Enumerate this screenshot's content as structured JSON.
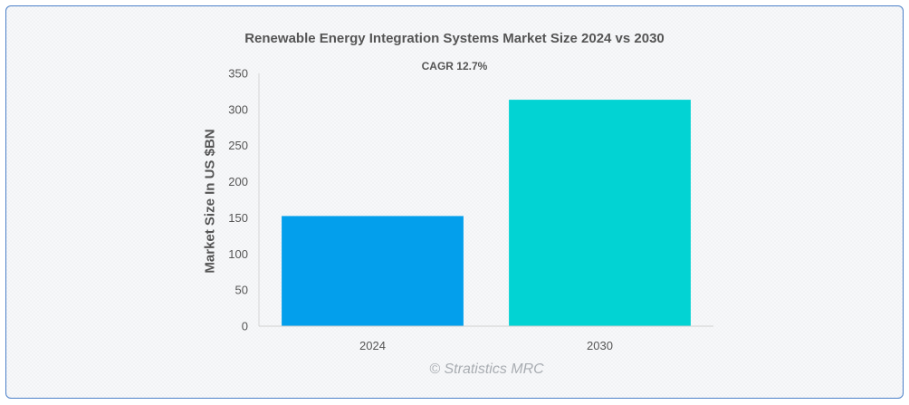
{
  "chart_data": {
    "type": "bar",
    "title": "Renewable Energy Integration Systems Market Size 2024 vs 2030",
    "subtitle": "CAGR 12.7%",
    "xlabel": "",
    "ylabel": "Market Size In US $BN",
    "categories": [
      "2024",
      "2030"
    ],
    "values": [
      152.5,
      313.5
    ],
    "colors": [
      "#039fec",
      "#02d3d3"
    ],
    "ylim": [
      0,
      350
    ],
    "yticks": [
      0,
      50,
      100,
      150,
      200,
      250,
      300,
      350
    ],
    "grid": false,
    "legend": "none"
  },
  "watermark": "© Stratistics MRC"
}
